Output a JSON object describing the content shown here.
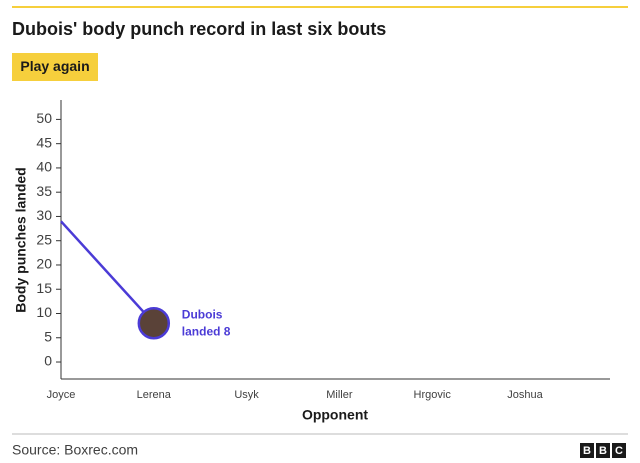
{
  "chart_data": {
    "type": "line",
    "title": "Dubois' body punch record in last six bouts",
    "button": "Play again",
    "categories": [
      "Joyce",
      "Lerena",
      "Usyk",
      "Miller",
      "Hrgovic",
      "Joshua"
    ],
    "values": [
      29,
      8,
      null,
      null,
      null,
      null
    ],
    "color": "#4b3bd6",
    "ylim": [
      -3.5,
      54
    ],
    "yticks": [
      0,
      5,
      10,
      15,
      20,
      25,
      30,
      35,
      40,
      45,
      50
    ],
    "y_label": "Body punches landed",
    "x_label": "Opponent",
    "annotation": [
      "Dubois",
      "landed 8"
    ],
    "source": "Source: Boxrec.com",
    "logo": [
      "B",
      "B",
      "C"
    ],
    "grid": false
  }
}
